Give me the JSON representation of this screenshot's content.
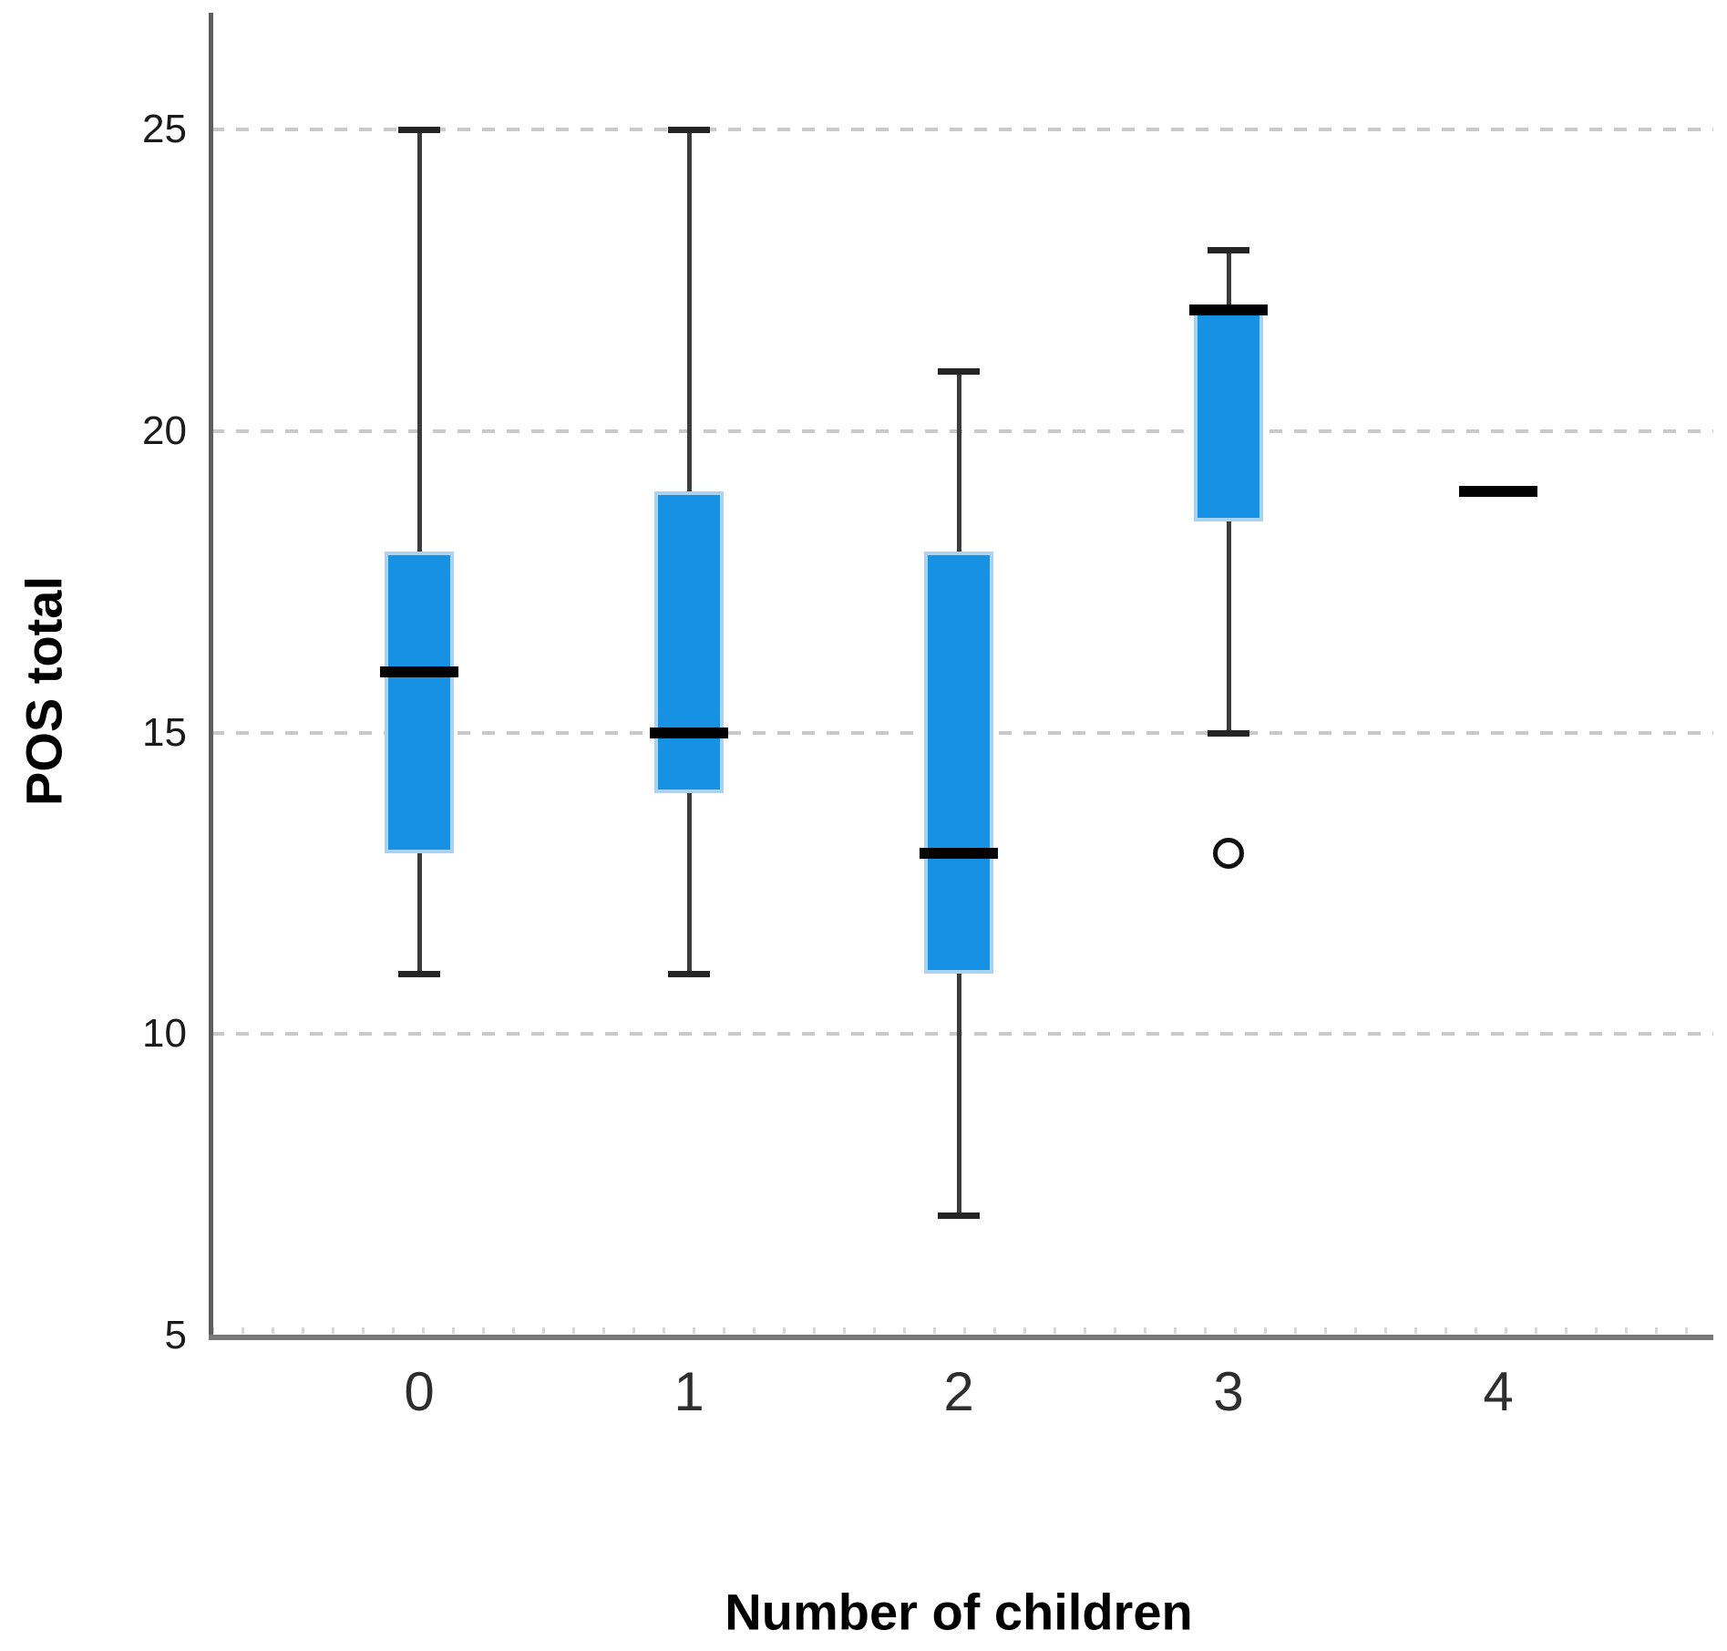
{
  "chart_data": {
    "type": "boxplot",
    "title": "",
    "xlabel": "Number of children",
    "ylabel": "POS total",
    "categories": [
      "0",
      "1",
      "2",
      "3",
      "4"
    ],
    "ylim": [
      5,
      27
    ],
    "yticks": [
      25,
      20,
      15,
      10,
      5
    ],
    "gridlines": [
      25,
      20,
      15,
      10
    ],
    "grid": "horizontal-dashed",
    "legend_position": "none",
    "boxes": [
      {
        "category": "0",
        "whisker_low": 11,
        "q1": 13,
        "median": 16,
        "q3": 18,
        "whisker_high": 25,
        "outliers": []
      },
      {
        "category": "1",
        "whisker_low": 11,
        "q1": 14,
        "median": 15,
        "q3": 19,
        "whisker_high": 25,
        "outliers": []
      },
      {
        "category": "2",
        "whisker_low": 7,
        "q1": 11,
        "median": 13,
        "q3": 18,
        "whisker_high": 21,
        "outliers": []
      },
      {
        "category": "3",
        "whisker_low": 15,
        "q1": 18.5,
        "median": 22,
        "q3": 22,
        "whisker_high": 23,
        "outliers": [
          13
        ]
      },
      {
        "category": "4",
        "whisker_low": null,
        "q1": null,
        "median": 19,
        "q3": null,
        "whisker_high": null,
        "outliers": []
      }
    ],
    "colors": {
      "box_fill": "#1691E4",
      "box_edge": "#A9D3F3",
      "median": "#000000",
      "whisker": "#3C3C3C",
      "whisker_cap": "#242424",
      "gridline": "#C9C9C9",
      "axis": "#5E5E5E",
      "outlier_stroke": "#111111",
      "tick_label": "#1A1A1A"
    }
  }
}
